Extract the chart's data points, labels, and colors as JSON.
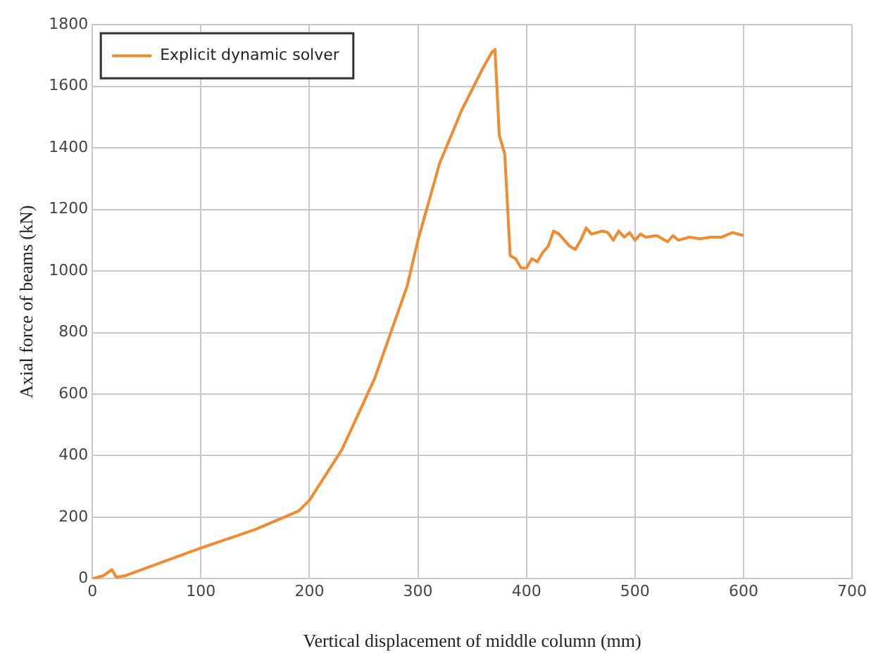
{
  "chart_data": {
    "type": "line",
    "xlabel": "Vertical displacement of middle column (mm)",
    "ylabel": "Axial force of beams (kN)",
    "xlim": [
      0,
      700
    ],
    "xticks": [
      0,
      100,
      200,
      300,
      400,
      500,
      600,
      700
    ],
    "ylim": [
      0,
      1800
    ],
    "yticks": [
      0,
      200,
      400,
      600,
      800,
      1000,
      1200,
      1400,
      1600,
      1800
    ],
    "grid": true,
    "legend": "top left",
    "marker": "none",
    "line_style": "solid",
    "series": [
      {
        "name": "Explicit dynamic solver",
        "color": "#f28a30",
        "x": [
          0,
          10,
          18,
          22,
          30,
          100,
          150,
          190,
          200,
          230,
          260,
          290,
          300,
          320,
          340,
          360,
          368,
          371,
          375,
          380,
          385,
          390,
          395,
          400,
          405,
          410,
          415,
          420,
          425,
          430,
          440,
          445,
          450,
          455,
          460,
          470,
          475,
          480,
          485,
          490,
          495,
          500,
          505,
          510,
          520,
          530,
          535,
          540,
          550,
          560,
          570,
          580,
          590,
          600
        ],
        "values": [
          0,
          10,
          30,
          5,
          10,
          100,
          160,
          220,
          255,
          420,
          650,
          950,
          1100,
          1350,
          1520,
          1660,
          1710,
          1720,
          1440,
          1380,
          1050,
          1040,
          1010,
          1010,
          1040,
          1030,
          1060,
          1080,
          1130,
          1120,
          1080,
          1070,
          1100,
          1140,
          1120,
          1130,
          1125,
          1100,
          1130,
          1110,
          1125,
          1100,
          1120,
          1110,
          1115,
          1095,
          1115,
          1100,
          1110,
          1105,
          1110,
          1110,
          1125,
          1115
        ]
      }
    ]
  }
}
